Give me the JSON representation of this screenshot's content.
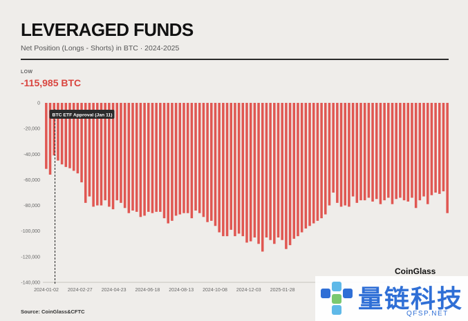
{
  "header": {
    "title": "LEVERAGED FUNDS",
    "subtitle": "Net Position (Longs - Shorts) in BTC · 2024-2025"
  },
  "stat": {
    "label": "LOW",
    "value": "-115,985 BTC"
  },
  "brand": "CoinGlass",
  "source": "Source: CoinGlass&CFTC",
  "watermark": {
    "text": "量链科技",
    "sub": "QFSP.NET",
    "logo_icon": "qfsp-logo-icon"
  },
  "colors": {
    "bar": "#e05752",
    "accent": "#d9453f",
    "background": "#efedea"
  },
  "chart_data": {
    "type": "bar",
    "series": [
      {
        "values": [
          -51500,
          -56000,
          -41000,
          -45000,
          -48000,
          -50000,
          -51000,
          -53000,
          -55000,
          -62000,
          -78000,
          -73000,
          -81000,
          -80000,
          -80000,
          -76000,
          -81000,
          -83000,
          -76000,
          -78000,
          -82000,
          -86000,
          -84000,
          -85000,
          -89000,
          -88000,
          -85000,
          -86000,
          -85000,
          -85000,
          -90000,
          -94000,
          -92000,
          -88000,
          -87000,
          -86000,
          -86000,
          -90000,
          -84000,
          -86000,
          -89000,
          -93000,
          -92000,
          -96000,
          -101000,
          -104000,
          -104000,
          -99000,
          -104000,
          -102000,
          -104000,
          -109000,
          -108000,
          -105000,
          -110000,
          -116000,
          -105000,
          -107000,
          -110000,
          -105000,
          -107000,
          -114000,
          -111000,
          -106000,
          -104000,
          -101000,
          -98000,
          -96000,
          -94000,
          -92000,
          -90000,
          -87000,
          -80000,
          -70000,
          -78000,
          -81000,
          -80000,
          -81000,
          -73000,
          -78000,
          -76000,
          -76000,
          -74000,
          -77000,
          -75000,
          -79000,
          -76000,
          -74000,
          -79000,
          -75000,
          -74000,
          -76000,
          -77000,
          -74000,
          -82000,
          -76000,
          -73000,
          -79000,
          -72000,
          -70000,
          -71000,
          -69000,
          -86000
        ]
      }
    ],
    "x_ticks": [
      "2024-01-02",
      "2024-02-27",
      "2024-04-23",
      "2024-06-18",
      "2024-08-13",
      "2024-10-08",
      "2024-12-03",
      "2025-01-28"
    ],
    "y_ticks": [
      "0",
      "-20,000",
      "-40,000",
      "-60,000",
      "-80,000",
      "-100,000",
      "-120,000",
      "-140,000"
    ],
    "ylim": [
      -140000,
      0
    ],
    "annotation": {
      "text": "BTC ETF Approval (Jan 11)",
      "bar_index": 1
    },
    "grid": false
  }
}
